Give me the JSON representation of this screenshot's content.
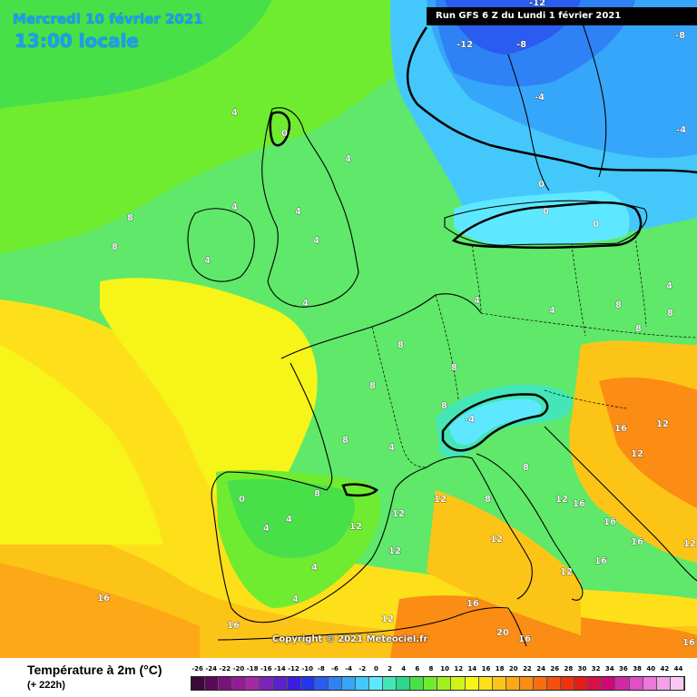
{
  "header": {
    "date": "Mercredi 10 février 2021",
    "time": "13:00 locale",
    "run": "Run GFS 6 Z du Lundi 1 février 2021"
  },
  "copyright": "Copyright © 2021 Meteociel.fr",
  "legend": {
    "title": "Température à 2m (°C)",
    "subtitle": "(+ 222h)",
    "ticks": [
      "-26",
      "-24",
      "-22",
      "-20",
      "-18",
      "-16",
      "-14",
      "-12",
      "-10",
      "-8",
      "-6",
      "-4",
      "-2",
      "0",
      "2",
      "4",
      "6",
      "8",
      "10",
      "12",
      "14",
      "16",
      "18",
      "20",
      "22",
      "24",
      "26",
      "28",
      "30",
      "32",
      "34",
      "36",
      "38",
      "40",
      "42",
      "44"
    ],
    "colors": [
      "#3a0a3a",
      "#5a0a5a",
      "#7a127a",
      "#951a95",
      "#a528a5",
      "#7c24b8",
      "#5a22c8",
      "#3a1ee0",
      "#2238e8",
      "#2a5cf0",
      "#2f82f5",
      "#36a6fa",
      "#44c8fc",
      "#5ee8ff",
      "#44e6b8",
      "#2ed88a",
      "#48e048",
      "#70ec30",
      "#a0f020",
      "#d0f41a",
      "#f6f418",
      "#fde01a",
      "#fdc418",
      "#fda816",
      "#fb8c14",
      "#f86e12",
      "#f45010",
      "#ee320e",
      "#e41c1e",
      "#d8104a",
      "#cc0a78",
      "#d22aa6",
      "#e04ec8",
      "#ec78dc",
      "#f2a0e8",
      "#f8c8f2"
    ]
  },
  "map_labels": [
    {
      "t": "-12"
    },
    {
      "t": "-8"
    },
    {
      "t": "-12"
    },
    {
      "t": "-8"
    },
    {
      "t": "-4"
    },
    {
      "t": "-4"
    },
    {
      "t": "0"
    },
    {
      "t": "0"
    },
    {
      "t": "0"
    },
    {
      "t": "0"
    },
    {
      "t": "4"
    },
    {
      "t": "4"
    },
    {
      "t": "4"
    },
    {
      "t": "4"
    },
    {
      "t": "4"
    },
    {
      "t": "4"
    },
    {
      "t": "4"
    },
    {
      "t": "4"
    },
    {
      "t": "4"
    },
    {
      "t": "4"
    },
    {
      "t": "4"
    },
    {
      "t": "4"
    },
    {
      "t": "4"
    },
    {
      "t": "4"
    },
    {
      "t": "8"
    },
    {
      "t": "8"
    },
    {
      "t": "8"
    },
    {
      "t": "8"
    },
    {
      "t": "8"
    },
    {
      "t": "8"
    },
    {
      "t": "8"
    },
    {
      "t": "8"
    },
    {
      "t": "8"
    },
    {
      "t": "8"
    },
    {
      "t": "8"
    },
    {
      "t": "8"
    },
    {
      "t": "12"
    },
    {
      "t": "12"
    },
    {
      "t": "12"
    },
    {
      "t": "12"
    },
    {
      "t": "12"
    },
    {
      "t": "12"
    },
    {
      "t": "12"
    },
    {
      "t": "12"
    },
    {
      "t": "12"
    },
    {
      "t": "12"
    },
    {
      "t": "16"
    },
    {
      "t": "16"
    },
    {
      "t": "16"
    },
    {
      "t": "16"
    },
    {
      "t": "16"
    },
    {
      "t": "16"
    },
    {
      "t": "16"
    },
    {
      "t": "16"
    },
    {
      "t": "16"
    },
    {
      "t": "20"
    },
    {
      "t": "-4"
    },
    {
      "t": "0"
    },
    {
      "t": "4"
    },
    {
      "t": "8"
    },
    {
      "t": "12"
    },
    {
      "t": "16"
    }
  ]
}
